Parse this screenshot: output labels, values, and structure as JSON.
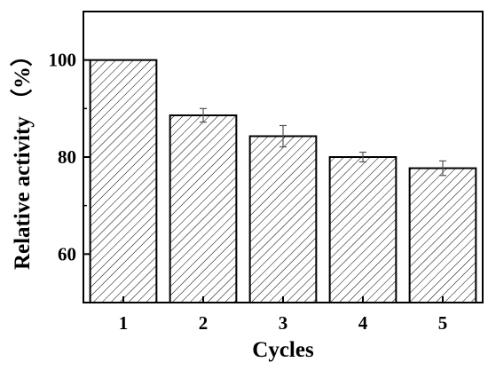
{
  "chart_data": {
    "type": "bar",
    "categories": [
      "1",
      "2",
      "3",
      "4",
      "5"
    ],
    "values": [
      100,
      88.6,
      84.3,
      80.0,
      77.7
    ],
    "errors": [
      0,
      1.4,
      2.2,
      1.0,
      1.5
    ],
    "xlabel": "Cycles",
    "ylabel": "Relative activity （%）",
    "ylim": [
      50,
      110
    ],
    "yticks": [
      60,
      80,
      100
    ],
    "ytick_labels": [
      "60",
      "80",
      "100"
    ],
    "bar_fill": "hatched",
    "bar_color": "#000000",
    "grid": false,
    "legend": "none"
  }
}
